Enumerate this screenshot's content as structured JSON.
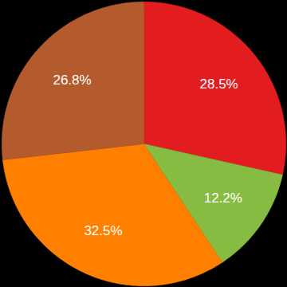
{
  "chart_data": {
    "type": "pie",
    "values": [
      28.5,
      12.2,
      32.5,
      26.8
    ],
    "value_labels": [
      "28.5%",
      "12.2%",
      "32.5%",
      "26.8%"
    ],
    "colors": [
      "#e31d1f",
      "#86bc41",
      "#ff7f00",
      "#b35b2c"
    ],
    "data_labels": true
  }
}
